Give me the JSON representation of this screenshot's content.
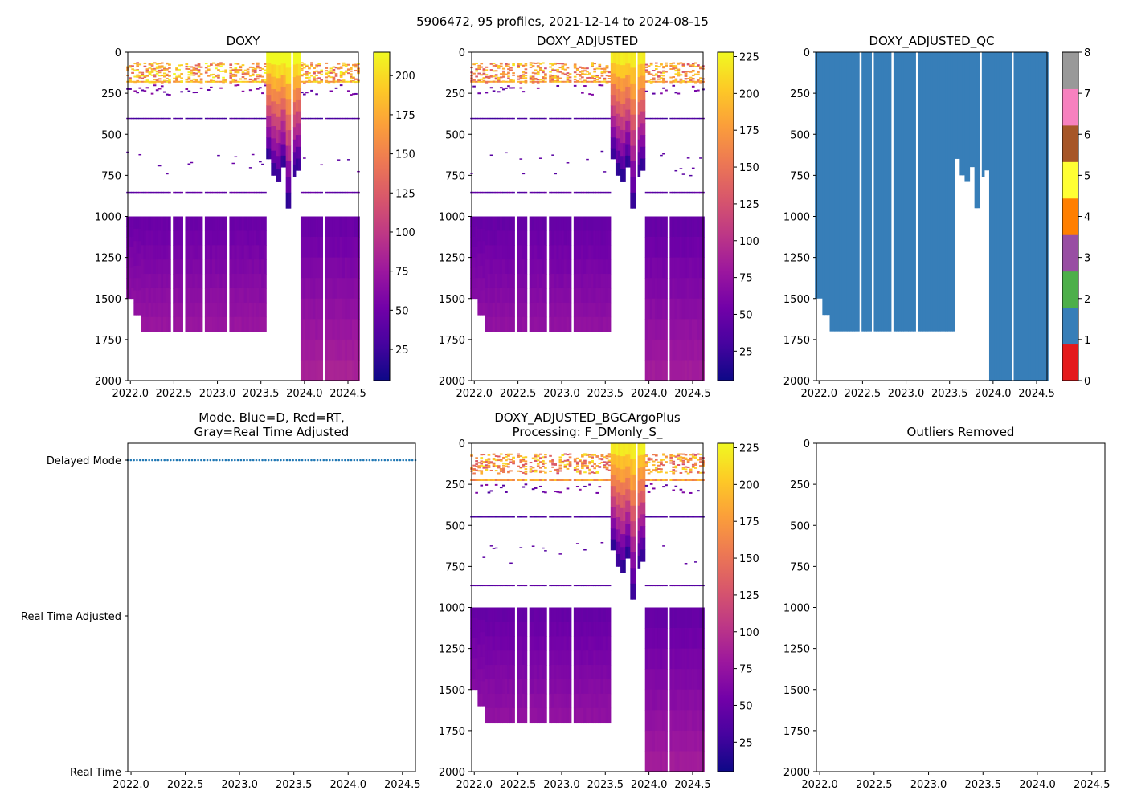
{
  "suptitle": "5906472, 95 profiles, 2021-12-14 to 2024-08-15",
  "colors": {
    "plasma": [
      "#0d0887",
      "#46039f",
      "#7201a8",
      "#9c179e",
      "#bd3786",
      "#d8576b",
      "#ed7953",
      "#fb9f3a",
      "#fdca26",
      "#f0f921"
    ],
    "qc": [
      "#e41a1c",
      "#377eb8",
      "#4daf4a",
      "#984ea3",
      "#ff7f00",
      "#ffff33",
      "#a65628",
      "#f781bf",
      "#999999"
    ],
    "mode_blue": "#1f77b4"
  },
  "chart_data": [
    {
      "id": "doxy",
      "type": "heatmap",
      "title": "DOXY",
      "xlabel": "",
      "ylabel": "",
      "xlim": [
        2021.97,
        2024.62
      ],
      "ylim": [
        2000,
        0
      ],
      "xticks": [
        "2022.0",
        "2022.5",
        "2023.0",
        "2023.5",
        "2024.0",
        "2024.5"
      ],
      "xtick_values": [
        2022.0,
        2022.5,
        2023.0,
        2023.5,
        2024.0,
        2024.5
      ],
      "yticks": [
        "0",
        "250",
        "500",
        "750",
        "1000",
        "1250",
        "1500",
        "1750",
        "2000"
      ],
      "ytick_values": [
        0,
        250,
        500,
        750,
        1000,
        1250,
        1500,
        1750,
        2000
      ],
      "colorbar": {
        "cmap": "plasma",
        "range": [
          5,
          215
        ],
        "ticks": [
          "25",
          "50",
          "75",
          "100",
          "125",
          "150",
          "175",
          "200"
        ],
        "tick_values": [
          25,
          50,
          75,
          100,
          125,
          150,
          175,
          200
        ]
      },
      "profile_dates": [
        2021.95,
        2022.92,
        2023.6,
        2024.62
      ],
      "deep_block": {
        "depth_top": 1000,
        "o2_top": 50,
        "o2_bottom": 80
      }
    },
    {
      "id": "doxy_adjusted",
      "type": "heatmap",
      "title": "DOXY_ADJUSTED",
      "xlabel": "",
      "ylabel": "",
      "xlim": [
        2021.97,
        2024.62
      ],
      "ylim": [
        2000,
        0
      ],
      "xticks": [
        "2022.0",
        "2022.5",
        "2023.0",
        "2023.5",
        "2024.0",
        "2024.5"
      ],
      "xtick_values": [
        2022.0,
        2022.5,
        2023.0,
        2023.5,
        2024.0,
        2024.5
      ],
      "yticks": [
        "0",
        "250",
        "500",
        "750",
        "1000",
        "1250",
        "1500",
        "1750",
        "2000"
      ],
      "ytick_values": [
        0,
        250,
        500,
        750,
        1000,
        1250,
        1500,
        1750,
        2000
      ],
      "colorbar": {
        "cmap": "plasma",
        "range": [
          5,
          228
        ],
        "ticks": [
          "25",
          "50",
          "75",
          "100",
          "125",
          "150",
          "175",
          "200",
          "225"
        ],
        "tick_values": [
          25,
          50,
          75,
          100,
          125,
          150,
          175,
          200,
          225
        ]
      }
    },
    {
      "id": "doxy_adjusted_qc",
      "type": "heatmap",
      "title": "DOXY_ADJUSTED_QC",
      "xlabel": "",
      "ylabel": "",
      "xlim": [
        2021.97,
        2024.62
      ],
      "ylim": [
        2000,
        0
      ],
      "xticks": [
        "2022.0",
        "2022.5",
        "2023.0",
        "2023.5",
        "2024.0",
        "2024.5"
      ],
      "xtick_values": [
        2022.0,
        2022.5,
        2023.0,
        2023.5,
        2024.0,
        2024.5
      ],
      "yticks": [
        "0",
        "250",
        "500",
        "750",
        "1000",
        "1250",
        "1500",
        "1750",
        "2000"
      ],
      "ytick_values": [
        0,
        250,
        500,
        750,
        1000,
        1250,
        1500,
        1750,
        2000
      ],
      "colorbar": {
        "cmap": "qc",
        "range": [
          0,
          8
        ],
        "ticks": [
          "0",
          "1",
          "2",
          "3",
          "4",
          "5",
          "6",
          "7",
          "8"
        ],
        "tick_values": [
          0,
          1,
          2,
          3,
          4,
          5,
          6,
          7,
          8
        ]
      },
      "qc_value_shown": 1
    },
    {
      "id": "mode",
      "type": "scatter",
      "title": "Mode. Blue=D, Red=RT,",
      "title_line2": "Gray=Real Time Adjusted",
      "xlabel": "",
      "ylabel": "",
      "xlim": [
        2021.97,
        2024.62
      ],
      "xticks": [
        "2022.0",
        "2022.5",
        "2023.0",
        "2023.5",
        "2024.0",
        "2024.5"
      ],
      "xtick_values": [
        2022.0,
        2022.5,
        2023.0,
        2023.5,
        2024.0,
        2024.5
      ],
      "yticks": [
        "Delayed Mode",
        "Real Time Adjusted",
        "Real Time"
      ],
      "ytick_values": [
        2,
        1,
        0
      ],
      "series": [
        {
          "name": "Delayed Mode",
          "mode_value": 2,
          "x_start": 2021.97,
          "x_end": 2024.62,
          "count": 95,
          "color": "#1f77b4"
        }
      ]
    },
    {
      "id": "bgcargoplus",
      "type": "heatmap",
      "title": "DOXY_ADJUSTED_BGCArgoPlus",
      "title_line2": "Processing: F_DMonly_S_",
      "xlabel": "",
      "ylabel": "",
      "xlim": [
        2021.97,
        2024.62
      ],
      "ylim": [
        2000,
        0
      ],
      "xticks": [
        "2022.0",
        "2022.5",
        "2023.0",
        "2023.5",
        "2024.0",
        "2024.5"
      ],
      "xtick_values": [
        2022.0,
        2022.5,
        2023.0,
        2023.5,
        2024.0,
        2024.5
      ],
      "yticks": [
        "0",
        "250",
        "500",
        "750",
        "1000",
        "1250",
        "1500",
        "1750",
        "2000"
      ],
      "ytick_values": [
        0,
        250,
        500,
        750,
        1000,
        1250,
        1500,
        1750,
        2000
      ],
      "colorbar": {
        "cmap": "plasma",
        "range": [
          5,
          228
        ],
        "ticks": [
          "25",
          "50",
          "75",
          "100",
          "125",
          "150",
          "175",
          "200",
          "225"
        ],
        "tick_values": [
          25,
          50,
          75,
          100,
          125,
          150,
          175,
          200,
          225
        ]
      }
    },
    {
      "id": "outliers",
      "type": "scatter",
      "title": "Outliers Removed",
      "xlabel": "",
      "ylabel": "",
      "xlim": [
        2021.97,
        2024.62
      ],
      "ylim": [
        2000,
        0
      ],
      "xticks": [
        "2022.0",
        "2022.5",
        "2023.0",
        "2023.5",
        "2024.0",
        "2024.5"
      ],
      "xtick_values": [
        2022.0,
        2022.5,
        2023.0,
        2023.5,
        2024.0,
        2024.5
      ],
      "yticks": [
        "0",
        "250",
        "500",
        "750",
        "1000",
        "1250",
        "1500",
        "1750",
        "2000"
      ],
      "ytick_values": [
        0,
        250,
        500,
        750,
        1000,
        1250,
        1500,
        1750,
        2000
      ],
      "series": []
    }
  ]
}
